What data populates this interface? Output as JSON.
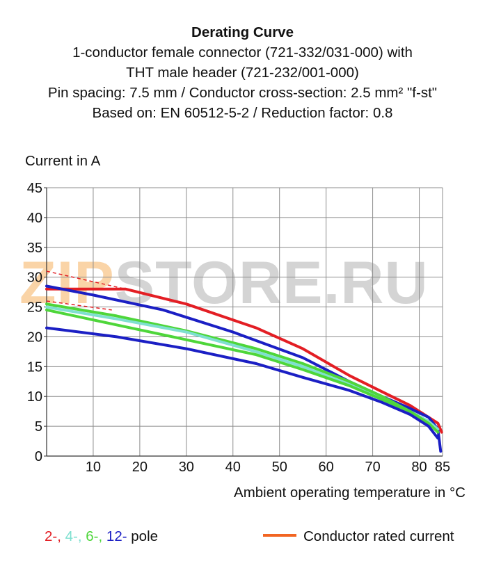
{
  "chart_data": {
    "type": "line",
    "title": "Derating Curve",
    "subtitle": [
      "1-conductor female connector (721-332/031-000) with",
      "THT male header (721-232/001-000)",
      "Pin spacing: 7.5 mm / Conductor cross-section: 2.5 mm² \"f-st\"",
      "Based on: EN 60512-5-2 / Reduction factor: 0.8"
    ],
    "ylabel": "Current in A",
    "xlabel": "Ambient operating temperature in °C",
    "xlim": [
      0,
      85
    ],
    "ylim": [
      0,
      45
    ],
    "xticks": [
      10,
      20,
      30,
      40,
      50,
      60,
      70,
      80,
      85
    ],
    "yticks": [
      0,
      5,
      10,
      15,
      20,
      25,
      30,
      35,
      40,
      45
    ],
    "grid": true,
    "conductor_rated_current": {
      "color": "#e31e24",
      "dashed_start": [
        0,
        31
      ],
      "value": 28,
      "until_x": 17
    },
    "series": [
      {
        "name": "2-pole",
        "color": "#e31e24",
        "x": [
          0,
          17,
          30,
          45,
          55,
          65,
          72,
          78,
          82,
          84,
          84.8
        ],
        "y": [
          28,
          28,
          25.5,
          21.5,
          18,
          13.5,
          10.8,
          8.5,
          6.5,
          5.5,
          4
        ]
      },
      {
        "name": "12-pole",
        "color": "#1b1fc4",
        "x": [
          0,
          10,
          25,
          40,
          55,
          65,
          72,
          78,
          82,
          84,
          84.6
        ],
        "y": [
          28.5,
          27,
          24.5,
          20.8,
          16.5,
          12.5,
          10,
          8,
          6.5,
          4.5,
          0.8
        ]
      },
      {
        "name": "6-pole",
        "color": "#4ed63a",
        "x": [
          0,
          15,
          30,
          45,
          55,
          65,
          72,
          78,
          82,
          84
        ],
        "y": [
          25.5,
          23.5,
          21,
          18,
          15.5,
          12.5,
          10,
          7.5,
          5.8,
          4.5
        ]
      },
      {
        "name": "4-pole",
        "color": "#7fe0d0",
        "x": [
          0,
          15,
          30,
          45,
          55,
          65,
          72,
          78,
          82,
          84
        ],
        "y": [
          25,
          23,
          20.8,
          17.5,
          15,
          12,
          9.5,
          7.5,
          5.8,
          4.5
        ]
      },
      {
        "name": "6-pole",
        "color": "#4ed63a",
        "x": [
          0,
          15,
          30,
          45,
          55,
          65,
          72,
          78,
          82,
          84
        ],
        "y": [
          24.5,
          22,
          19.5,
          17,
          14.5,
          11.8,
          9.5,
          7.5,
          5.5,
          4
        ]
      },
      {
        "name": "12-pole",
        "color": "#1b1fc4",
        "x": [
          0,
          15,
          30,
          45,
          55,
          65,
          72,
          78,
          82,
          84
        ],
        "y": [
          21.5,
          20,
          18,
          15.5,
          13.2,
          11,
          9,
          7,
          5,
          3
        ]
      }
    ],
    "legend": {
      "poles_prefix": [
        "2-,",
        "4-,",
        "6-,",
        "12-"
      ],
      "poles_colors": [
        "#e31e24",
        "#7fe0d0",
        "#4ed63a",
        "#1b1fc4"
      ],
      "poles_suffix": "pole",
      "rated_label": "Conductor rated current",
      "rated_color": "#f26522"
    }
  },
  "watermark": {
    "zip": "ZIP",
    "rest": "STORE.RU"
  }
}
